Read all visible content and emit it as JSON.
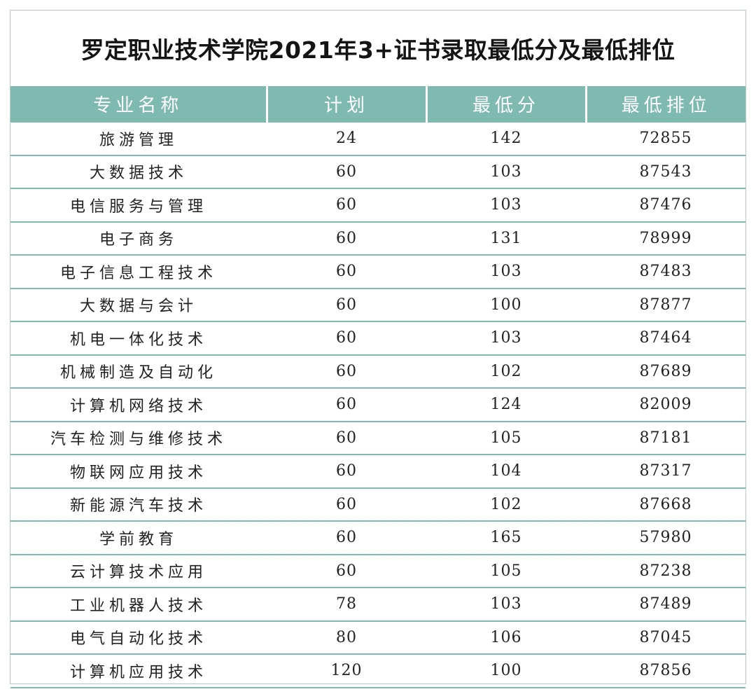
{
  "title": "罗定职业技术学院2021年3+证书录取最低分及最低排位",
  "colors": {
    "header_bg": "#7fbab0",
    "header_text": "#ffffff",
    "row_rule": "#7fbab0",
    "frame": "#b9c9c6"
  },
  "table": {
    "headers": [
      "专业名称",
      "计划",
      "最低分",
      "最低排位"
    ],
    "rows": [
      [
        "旅游管理",
        "24",
        "142",
        "72855"
      ],
      [
        "大数据技术",
        "60",
        "103",
        "87543"
      ],
      [
        "电信服务与管理",
        "60",
        "103",
        "87476"
      ],
      [
        "电子商务",
        "60",
        "131",
        "78999"
      ],
      [
        "电子信息工程技术",
        "60",
        "103",
        "87483"
      ],
      [
        "大数据与会计",
        "60",
        "100",
        "87877"
      ],
      [
        "机电一体化技术",
        "60",
        "103",
        "87464"
      ],
      [
        "机械制造及自动化",
        "60",
        "102",
        "87689"
      ],
      [
        "计算机网络技术",
        "60",
        "124",
        "82009"
      ],
      [
        "汽车检测与维修技术",
        "60",
        "105",
        "87181"
      ],
      [
        "物联网应用技术",
        "60",
        "104",
        "87317"
      ],
      [
        "新能源汽车技术",
        "60",
        "102",
        "87668"
      ],
      [
        "学前教育",
        "60",
        "165",
        "57980"
      ],
      [
        "云计算技术应用",
        "60",
        "105",
        "87238"
      ],
      [
        "工业机器人技术",
        "78",
        "103",
        "87489"
      ],
      [
        "电气自动化技术",
        "80",
        "106",
        "87045"
      ],
      [
        "计算机应用技术",
        "120",
        "100",
        "87856"
      ]
    ]
  }
}
